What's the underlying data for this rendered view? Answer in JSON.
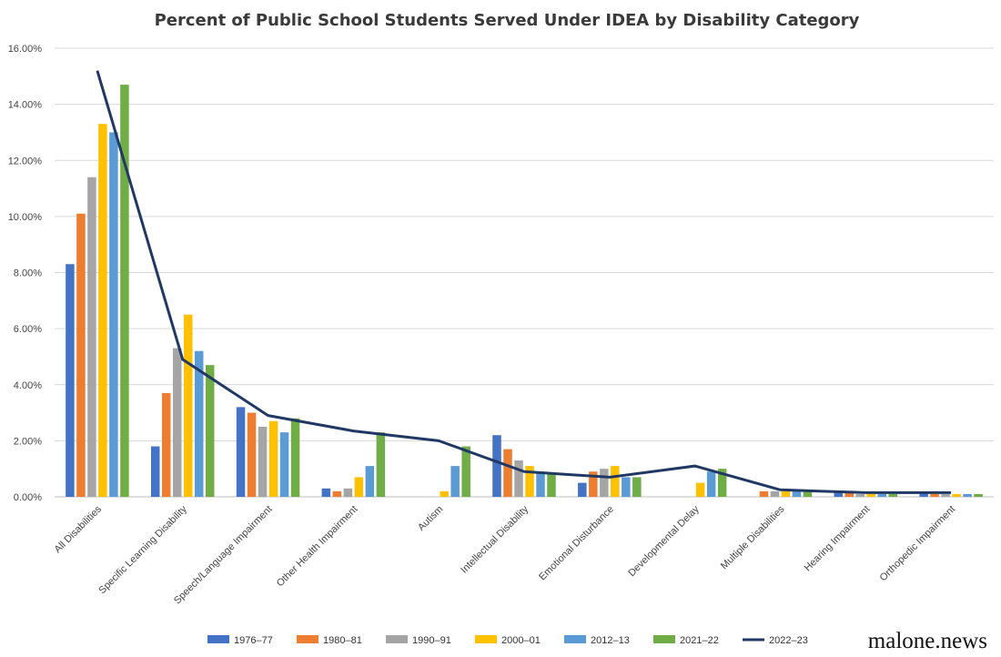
{
  "chart_data": {
    "type": "bar",
    "title": "Percent of Public School Students Served Under IDEA by Disability Category",
    "xlabel": "",
    "ylabel": "",
    "ylim": [
      0,
      16
    ],
    "y_ticks": [
      "0.00%",
      "2.00%",
      "4.00%",
      "6.00%",
      "8.00%",
      "10.00%",
      "12.00%",
      "14.00%",
      "16.00%"
    ],
    "grid": true,
    "legend_position": "bottom",
    "categories": [
      "All Disabilities",
      "Specific Learning Disability",
      "Speech/Language Impairment",
      "Other Health Impairment",
      "Autism",
      "Intellectual Disability",
      "Emotional Disturbance",
      "Developmental Delay",
      "Multiple Disabilities",
      "Hearing Impairment",
      "Orthopedic Impairment"
    ],
    "series": [
      {
        "name": "1976–77",
        "type": "bar",
        "color": "#4472C4",
        "values": [
          8.3,
          1.8,
          3.2,
          0.3,
          null,
          2.2,
          0.5,
          null,
          null,
          0.15,
          0.15
        ]
      },
      {
        "name": "1980–81",
        "type": "bar",
        "color": "#ED7D31",
        "values": [
          10.1,
          3.7,
          3.0,
          0.2,
          null,
          1.7,
          0.9,
          null,
          0.2,
          0.15,
          0.1
        ]
      },
      {
        "name": "1990–91",
        "type": "bar",
        "color": "#A5A5A5",
        "values": [
          11.4,
          5.3,
          2.5,
          0.3,
          null,
          1.3,
          1.0,
          null,
          0.2,
          0.1,
          0.1
        ]
      },
      {
        "name": "2000–01",
        "type": "bar",
        "color": "#FFC000",
        "values": [
          13.3,
          6.5,
          2.7,
          0.7,
          0.2,
          1.1,
          1.1,
          0.5,
          0.2,
          0.1,
          0.1
        ]
      },
      {
        "name": "2012–13",
        "type": "bar",
        "color": "#5B9BD5",
        "values": [
          13.0,
          5.2,
          2.3,
          1.1,
          1.1,
          0.9,
          0.7,
          0.9,
          0.2,
          0.1,
          0.1
        ]
      },
      {
        "name": "2021–22",
        "type": "bar",
        "color": "#70AD47",
        "values": [
          14.7,
          4.7,
          2.8,
          2.3,
          1.8,
          0.8,
          0.7,
          1.0,
          0.2,
          0.1,
          0.1
        ]
      },
      {
        "name": "2022–23",
        "type": "line",
        "color": "#203864",
        "values": [
          15.2,
          4.9,
          2.9,
          2.35,
          2.0,
          0.9,
          0.7,
          1.1,
          0.25,
          0.15,
          0.15
        ]
      }
    ]
  },
  "watermark": "malone.news"
}
